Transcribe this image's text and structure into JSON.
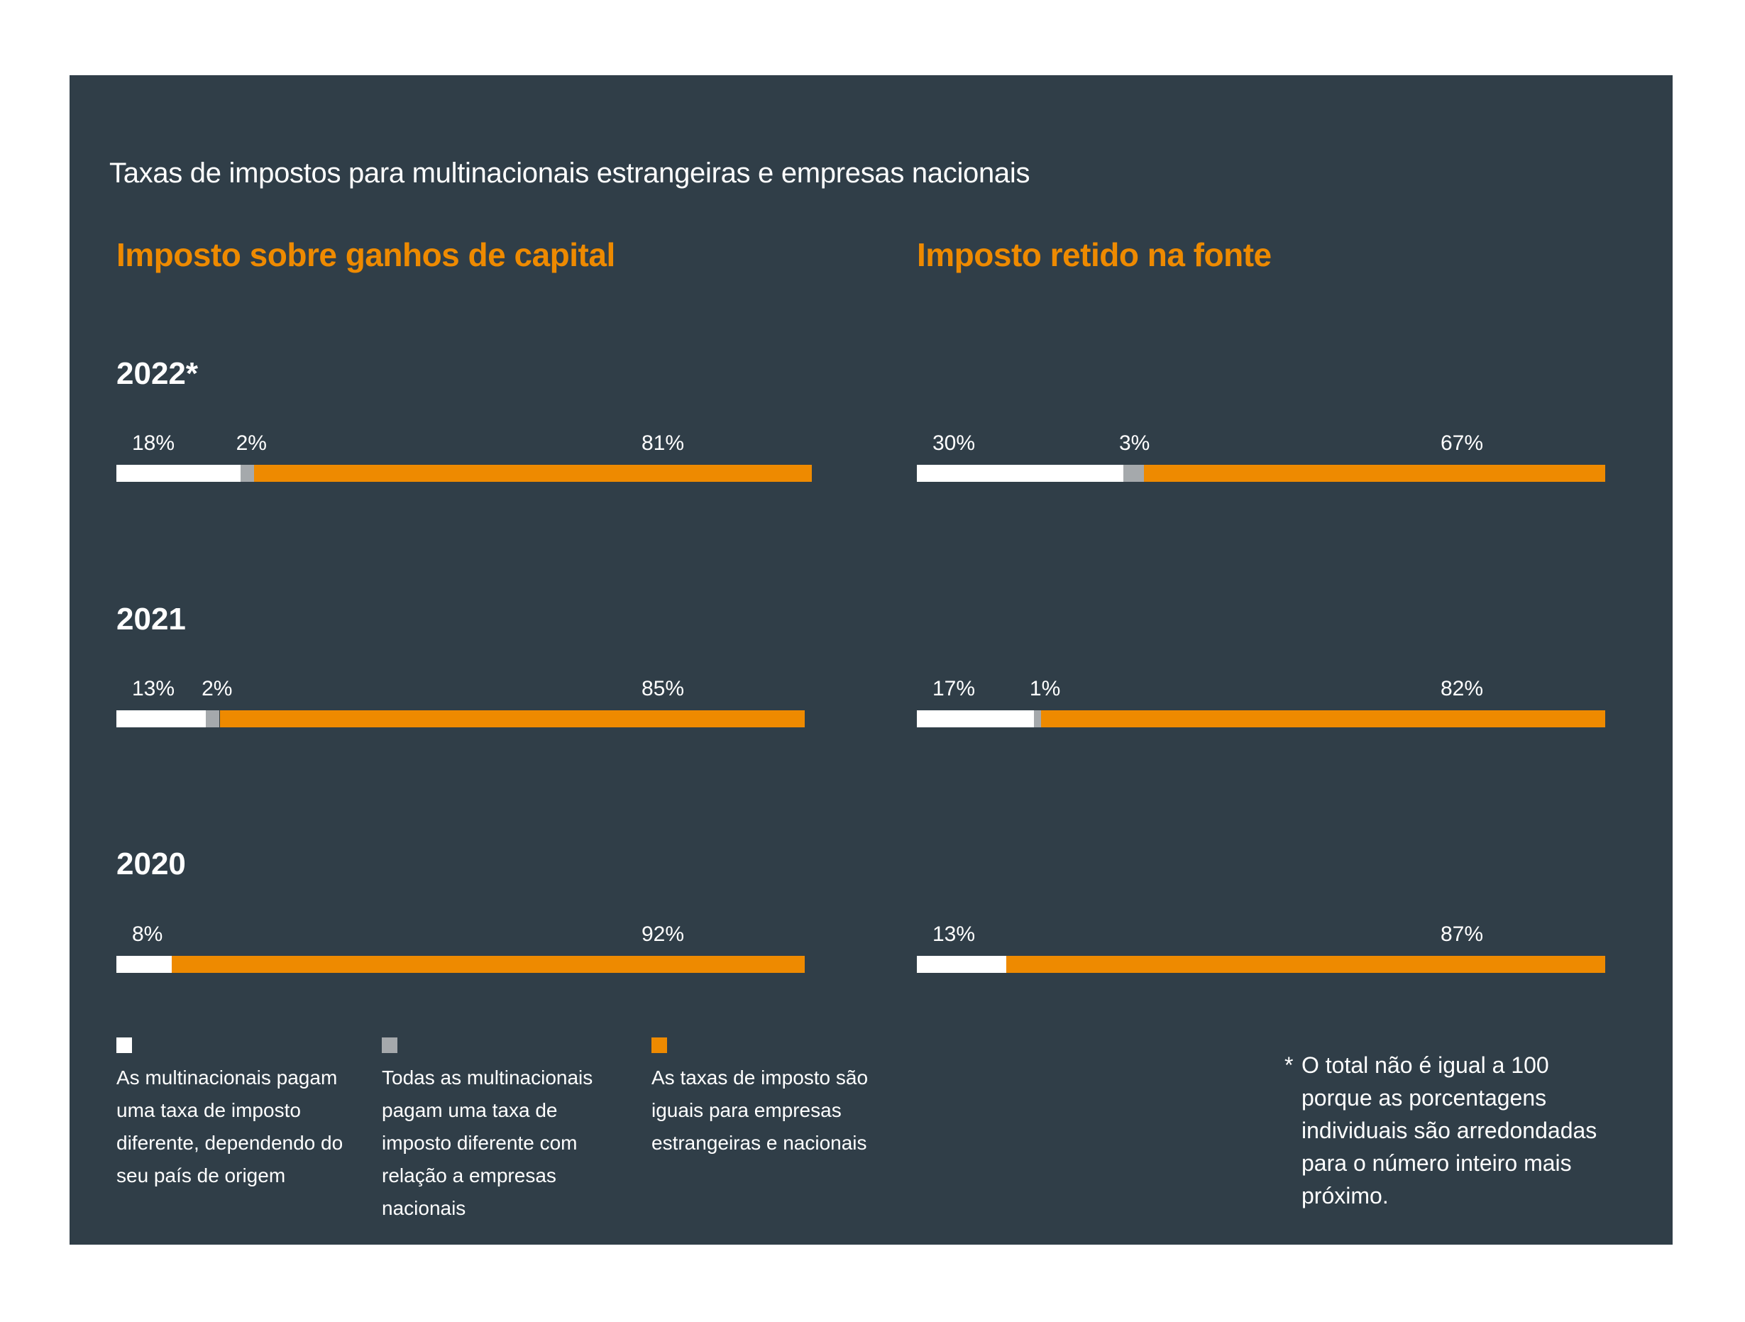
{
  "title": "Taxas de impostos para multinacionais estrangeiras e empresas nacionais",
  "colors": {
    "background": "#303e48",
    "different_by_origin": "#ffffff",
    "different_from_national": "#a5a9ac",
    "equal": "#ee8a00",
    "section_title": "#ee8a00"
  },
  "chart_data": [
    {
      "type": "bar",
      "orientation": "horizontal-stacked",
      "title": "Imposto sobre ganhos de capital",
      "categories": [
        "2022*",
        "2021",
        "2020"
      ],
      "series": [
        {
          "name": "As multinacionais pagam uma taxa de imposto diferente, dependendo do seu país de origem",
          "values": [
            18,
            13,
            8
          ]
        },
        {
          "name": "Todas as multinacionais pagam uma taxa de imposto diferente com relação a empresas nacionais",
          "values": [
            2,
            2,
            0
          ]
        },
        {
          "name": "As taxas de imposto são iguais para empresas estrangeiras e nacionais",
          "values": [
            81,
            85,
            92
          ]
        }
      ],
      "labels": [
        [
          "18%",
          "2%",
          "81%"
        ],
        [
          "13%",
          "2%",
          "85%"
        ],
        [
          "8%",
          "",
          "92%"
        ]
      ],
      "xlim": [
        0,
        100
      ],
      "grid": false
    },
    {
      "type": "bar",
      "orientation": "horizontal-stacked",
      "title": "Imposto retido na fonte",
      "categories": [
        "2022*",
        "2021",
        "2020"
      ],
      "series": [
        {
          "name": "As multinacionais pagam uma taxa de imposto diferente, dependendo do seu país de origem",
          "values": [
            30,
            17,
            13
          ]
        },
        {
          "name": "Todas as multinacionais pagam uma taxa de imposto diferente com relação a empresas nacionais",
          "values": [
            3,
            1,
            0
          ]
        },
        {
          "name": "As taxas de imposto são iguais para empresas estrangeiras e nacionais",
          "values": [
            67,
            82,
            87
          ]
        }
      ],
      "labels": [
        [
          "30%",
          "3%",
          "67%"
        ],
        [
          "17%",
          "1%",
          "82%"
        ],
        [
          "13%",
          "",
          "87%"
        ]
      ],
      "xlim": [
        0,
        100
      ],
      "grid": false
    }
  ],
  "legend": [
    {
      "text": "As multinacionais pagam uma taxa de imposto diferente, dependendo do seu país de origem",
      "lines": [
        "As multinacionais pagam",
        "uma taxa de imposto",
        "diferente, dependendo do",
        "seu país de origem"
      ],
      "color": "#ffffff"
    },
    {
      "text": "Todas as multinacionais pagam uma taxa de imposto diferente com relação a empresas nacionais",
      "lines": [
        "Todas as multinacionais",
        "pagam uma taxa de",
        "imposto diferente com",
        "relação a empresas",
        "nacionais"
      ],
      "color": "#a5a9ac"
    },
    {
      "text": "As taxas de imposto são iguais para empresas estrangeiras e nacionais",
      "lines": [
        "As taxas de imposto são",
        "iguais para empresas",
        "estrangeiras e nacionais"
      ],
      "color": "#ee8a00"
    }
  ],
  "footnote": {
    "marker": "*",
    "lines": [
      "O total não é igual a 100",
      "porque as porcentagens",
      "individuais são arredondadas",
      "para o número inteiro mais",
      "próximo."
    ]
  }
}
